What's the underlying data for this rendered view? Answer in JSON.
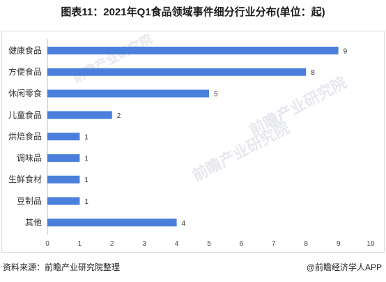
{
  "figure": {
    "title": "图表11：2021年Q1食品领域事件细分行业分布(单位：起)",
    "source": "资料来源：前瞻产业研究院整理",
    "credit": "@前瞻经济学人APP",
    "watermark": "前瞻产业研究院"
  },
  "chart_data": {
    "type": "bar",
    "orientation": "horizontal",
    "categories": [
      "健康食品",
      "方便食品",
      "休闲零食",
      "儿童食品",
      "烘焙食品",
      "调味品",
      "生鲜食材",
      "豆制品",
      "其他"
    ],
    "values": [
      9,
      8,
      5,
      2,
      1,
      1,
      1,
      1,
      4
    ],
    "xlim": [
      0,
      10
    ],
    "xticks": [
      0,
      1,
      2,
      3,
      4,
      5,
      6,
      7,
      8,
      9,
      10
    ],
    "bar_color": "#4a7fdb",
    "grid": false,
    "legend": "none"
  }
}
